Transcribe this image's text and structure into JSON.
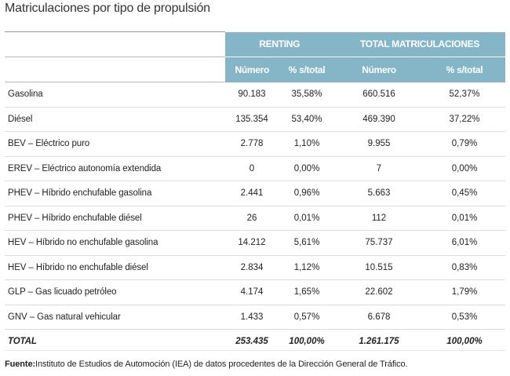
{
  "title": "Matriculaciones por tipo de propulsión",
  "header": {
    "group_renting": "RENTING",
    "group_total": "TOTAL MATRICULACIONES",
    "col_numero": "Número",
    "col_pct": "% s/total"
  },
  "rows": [
    {
      "label": "Gasolina",
      "r_num": "90.183",
      "r_pct": "35,58%",
      "t_num": "660.516",
      "t_pct": "52,37%"
    },
    {
      "label": "Diésel",
      "r_num": "135.354",
      "r_pct": "53,40%",
      "t_num": "469.390",
      "t_pct": "37,22%"
    },
    {
      "label": "BEV – Eléctrico puro",
      "r_num": "2.778",
      "r_pct": "1,10%",
      "t_num": "9.955",
      "t_pct": "0,79%"
    },
    {
      "label": "EREV – Eléctrico autonomía extendida",
      "r_num": "0",
      "r_pct": "0,00%",
      "t_num": "7",
      "t_pct": "0,00%"
    },
    {
      "label": "PHEV – Híbrido enchufable gasolina",
      "r_num": "2.441",
      "r_pct": "0,96%",
      "t_num": "5.663",
      "t_pct": "0,45%"
    },
    {
      "label": "PHEV – Híbrido enchufable diésel",
      "r_num": "26",
      "r_pct": "0,01%",
      "t_num": "112",
      "t_pct": "0,01%"
    },
    {
      "label": "HEV – Híbrido no enchufable gasolina",
      "r_num": "14.212",
      "r_pct": "5,61%",
      "t_num": "75.737",
      "t_pct": "6,01%"
    },
    {
      "label": "HEV – Híbrido no enchufable diésel",
      "r_num": "2.834",
      "r_pct": "1,12%",
      "t_num": "10.515",
      "t_pct": "0,83%"
    },
    {
      "label": "GLP – Gas licuado petróleo",
      "r_num": "4.174",
      "r_pct": "1,65%",
      "t_num": "22.602",
      "t_pct": "1,79%"
    },
    {
      "label": "GNV – Gas natural vehicular",
      "r_num": "1.433",
      "r_pct": "0,57%",
      "t_num": "6.678",
      "t_pct": "0,53%"
    }
  ],
  "total": {
    "label": "TOTAL",
    "r_num": "253.435",
    "r_pct": "100,00%",
    "t_num": "1.261.175",
    "t_pct": "100,00%"
  },
  "source": {
    "prefix": "Fuente:",
    "text": "Instituto de Estudios de Automoción (IEA) de datos procedentes de la Dirección General de Tráfico."
  },
  "colors": {
    "header_bg": "#84b6c7",
    "header_text": "#ffffff"
  }
}
